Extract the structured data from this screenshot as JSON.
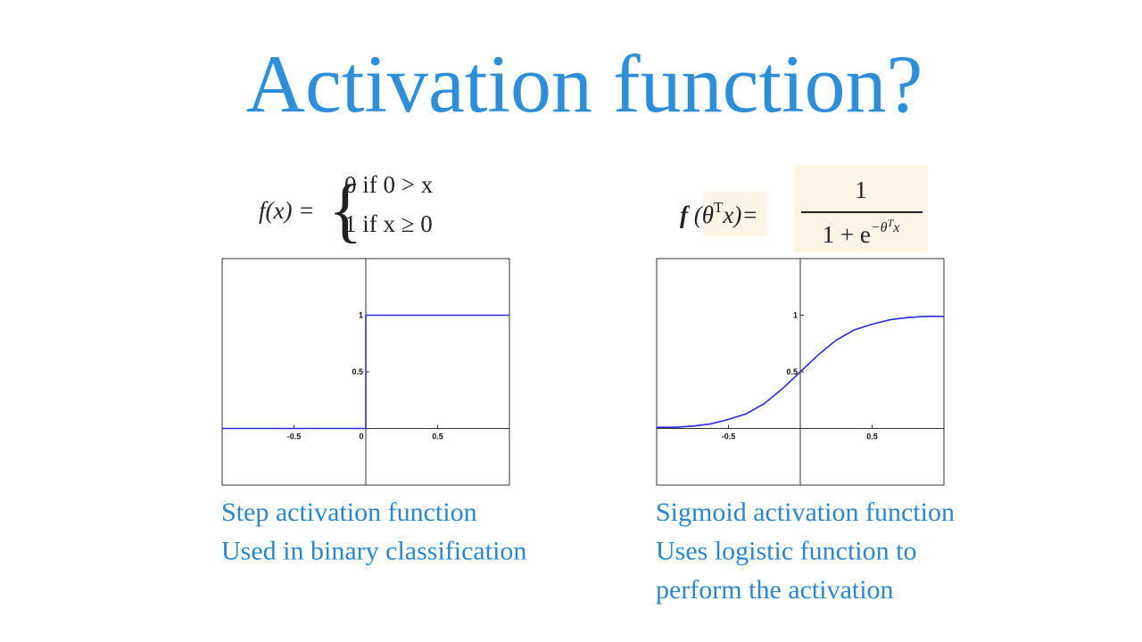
{
  "title": "Activation function?",
  "chart_data": [
    {
      "type": "line",
      "formula": {
        "lhs": "f(x) =",
        "cases": [
          "0 if  0 > x",
          "1 if  x ≥ 0"
        ]
      },
      "x": [
        -1,
        0,
        0,
        1
      ],
      "series": [
        {
          "color": "#2a2ae0",
          "values": [
            0,
            0,
            1,
            1
          ]
        }
      ],
      "xlim": [
        -1,
        1
      ],
      "ylim": [
        -0.5,
        1.5
      ],
      "xticks": [
        -0.5,
        0,
        0.5
      ],
      "yticks": [
        0.5,
        1
      ],
      "caption": [
        "Step activation function",
        "Used in binary classification"
      ]
    },
    {
      "type": "line",
      "formula": {
        "lhs": [
          "f",
          " (θ",
          "T",
          "x)= "
        ],
        "numerator": "1",
        "denominator": [
          "1 + e",
          "−θ",
          "T",
          "x"
        ]
      },
      "x": [
        -1,
        -0.875,
        -0.75,
        -0.625,
        -0.5,
        -0.375,
        -0.25,
        -0.125,
        0,
        0.125,
        0.25,
        0.375,
        0.5,
        0.625,
        0.75,
        0.875,
        1
      ],
      "series": [
        {
          "color": "#2a2ae0",
          "values": [
            0.01,
            0.01,
            0.02,
            0.04,
            0.08,
            0.13,
            0.22,
            0.35,
            0.5,
            0.65,
            0.78,
            0.87,
            0.92,
            0.96,
            0.98,
            0.99,
            0.99
          ]
        }
      ],
      "xlim": [
        -1,
        1
      ],
      "ylim": [
        -0.5,
        1.5
      ],
      "xticks": [
        -0.5,
        0.5
      ],
      "yticks": [
        0.5,
        1
      ],
      "caption": [
        "Sigmoid activation function",
        "Uses logistic function to",
        "perform the activation"
      ]
    }
  ]
}
